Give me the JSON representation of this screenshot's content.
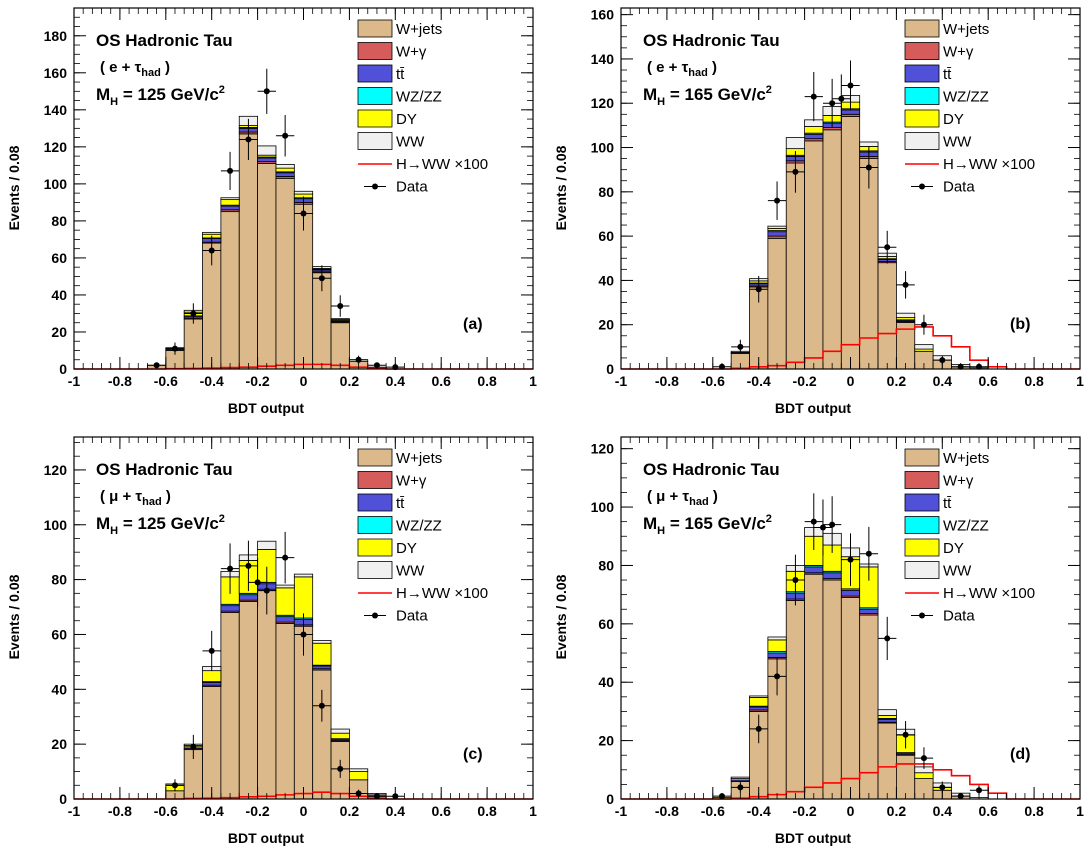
{
  "chart_data": [
    {
      "type": "bar",
      "panel": "(a)",
      "annotation": {
        "title": "OS Hadronic Tau",
        "channel": "( e + τhad )",
        "channel_prefix": "( e + τ",
        "channel_sub": "had",
        "channel_suffix": " )",
        "mass": "MH = 125 GeV/c2",
        "mass_lead": "M",
        "mass_lead_sub": "H",
        "mass_mid": " = 125 GeV/c",
        "mass_sup": "2"
      },
      "xlabel": "BDT output",
      "ylabel": "Events / 0.08",
      "xlim": [
        -1,
        1
      ],
      "ylim": [
        0,
        195
      ],
      "xticks": [
        "-1",
        "-0.8",
        "-0.6",
        "-0.4",
        "-0.2",
        "0",
        "0.2",
        "0.4",
        "0.6",
        "0.8",
        "1"
      ],
      "yticks": [
        0,
        20,
        40,
        60,
        80,
        100,
        120,
        140,
        160,
        180
      ],
      "bin_edges": [
        -0.68,
        -0.6,
        -0.52,
        -0.44,
        -0.36,
        -0.28,
        -0.2,
        -0.12,
        -0.04,
        0.04,
        0.12,
        0.2,
        0.28,
        0.36,
        0.44
      ],
      "stack": {
        "W+jets": [
          2,
          10,
          27,
          68,
          85,
          127,
          111,
          103,
          89,
          52,
          25,
          4,
          1,
          0
        ],
        "W+gamma": [
          0,
          0,
          0.5,
          0.5,
          1,
          1,
          1,
          1,
          1,
          0.5,
          0.5,
          0,
          0,
          0
        ],
        "ttbar": [
          0,
          0.5,
          1,
          2,
          2,
          2,
          2,
          2,
          2,
          1,
          0.5,
          0,
          0,
          0
        ],
        "WZ/ZZ": [
          0,
          0,
          0.2,
          0.3,
          0.5,
          0.5,
          0.5,
          0.5,
          0.5,
          0.3,
          0.2,
          0,
          0,
          0
        ],
        "DY": [
          0,
          0.5,
          2,
          2,
          3,
          1,
          1,
          2,
          2,
          0.5,
          0.5,
          0,
          0,
          0
        ],
        "WW": [
          0,
          0.5,
          1,
          1,
          1,
          5,
          5,
          2,
          1.5,
          1,
          0.5,
          1,
          0,
          0
        ]
      },
      "signal": {
        "name": "H→WW ×100",
        "values": [
          0,
          0.2,
          0.3,
          0.5,
          0.8,
          1,
          1.5,
          2,
          2.5,
          2.5,
          2,
          1,
          0.3,
          0
        ]
      },
      "data": {
        "x": [
          -0.64,
          -0.56,
          -0.48,
          -0.4,
          -0.32,
          -0.24,
          -0.16,
          -0.08,
          0,
          0.08,
          0.16,
          0.24,
          0.32,
          0.4
        ],
        "y": [
          2,
          11,
          30,
          64,
          107,
          124,
          150,
          126,
          84,
          49,
          34,
          5,
          2,
          1
        ],
        "err": [
          1.4,
          3.3,
          5.5,
          8,
          10.3,
          11.1,
          12.2,
          11.2,
          9.2,
          7,
          5.8,
          2.2,
          1.4,
          1
        ]
      },
      "legend": [
        "W+jets",
        "W+γ",
        "tt̄",
        "WZ/ZZ",
        "DY",
        "WW",
        "H→WW ×100",
        "Data"
      ],
      "legend_placement": "top-right"
    },
    {
      "type": "bar",
      "panel": "(b)",
      "annotation": {
        "title": "OS Hadronic Tau",
        "channel": "( e + τhad )",
        "channel_prefix": "( e + τ",
        "channel_sub": "had",
        "channel_suffix": " )",
        "mass": "MH = 165 GeV/c2",
        "mass_lead": "M",
        "mass_lead_sub": "H",
        "mass_mid": " = 165 GeV/c",
        "mass_sup": "2"
      },
      "xlabel": "BDT output",
      "ylabel": "Events / 0.08",
      "xlim": [
        -1,
        1
      ],
      "ylim": [
        0,
        163
      ],
      "xticks": [
        "-1",
        "-0.8",
        "-0.6",
        "-0.4",
        "-0.2",
        "0",
        "0.2",
        "0.4",
        "0.6",
        "0.8",
        "1"
      ],
      "yticks": [
        0,
        20,
        40,
        60,
        80,
        100,
        120,
        140,
        160
      ],
      "bin_edges": [
        -0.6,
        -0.52,
        -0.44,
        -0.36,
        -0.28,
        -0.2,
        -0.12,
        -0.04,
        0.04,
        0.12,
        0.2,
        0.28,
        0.36,
        0.44,
        0.52,
        0.6,
        0.68
      ],
      "stack": {
        "W+jets": [
          0,
          7,
          37,
          59,
          93,
          103,
          108,
          114,
          95,
          48,
          21,
          8,
          4,
          1,
          0,
          0
        ],
        "W+gamma": [
          0,
          0,
          0.5,
          1,
          1,
          1,
          1,
          1,
          1,
          0.5,
          0.5,
          0,
          0,
          0,
          0,
          0
        ],
        "ttbar": [
          0,
          0.5,
          1,
          2,
          2,
          2,
          2,
          2,
          2,
          1,
          0.5,
          0,
          0,
          0,
          0,
          0
        ],
        "WZ/ZZ": [
          0,
          0,
          0.3,
          0.5,
          0.5,
          0.5,
          0.5,
          0.5,
          0.5,
          0.3,
          0.2,
          0,
          0,
          0,
          0,
          0
        ],
        "DY": [
          0,
          0,
          1,
          1,
          3,
          3,
          3,
          3,
          2,
          1,
          1,
          1,
          0,
          0,
          0,
          0
        ],
        "WW": [
          0,
          0.5,
          1,
          1,
          5,
          3,
          4,
          3,
          2,
          1.5,
          2,
          2,
          2,
          1,
          0.5,
          0
        ]
      },
      "signal": {
        "name": "H→WW ×100",
        "values": [
          0,
          0.3,
          1,
          1.5,
          3,
          5,
          8,
          11,
          14,
          16,
          18,
          19,
          15,
          10,
          4,
          1
        ]
      },
      "data": {
        "x": [
          -0.56,
          -0.48,
          -0.4,
          -0.32,
          -0.24,
          -0.16,
          -0.08,
          -0.04,
          0,
          0.08,
          0.16,
          0.24,
          0.32,
          0.4,
          0.48,
          0.56
        ],
        "y": [
          1,
          10,
          36,
          76,
          89,
          123,
          120,
          122,
          128,
          91,
          55,
          38,
          20,
          4,
          1,
          1
        ],
        "err": [
          1,
          3.2,
          6,
          8.7,
          9.4,
          11.1,
          11,
          11,
          11.3,
          9.5,
          7.4,
          6.2,
          4.5,
          2,
          1,
          1
        ]
      },
      "legend": [
        "W+jets",
        "W+γ",
        "tt̄",
        "WZ/ZZ",
        "DY",
        "WW",
        "H→WW ×100",
        "Data"
      ],
      "legend_placement": "top-right"
    },
    {
      "type": "bar",
      "panel": "(c)",
      "annotation": {
        "title": "OS Hadronic Tau",
        "channel": "( μ + τhad )",
        "channel_prefix": "( μ + τ",
        "channel_sub": "had",
        "channel_suffix": " )",
        "mass": "MH = 125 GeV/c2",
        "mass_lead": "M",
        "mass_lead_sub": "H",
        "mass_mid": " = 125 GeV/c",
        "mass_sup": "2"
      },
      "xlabel": "BDT output",
      "ylabel": "Events / 0.08",
      "xlim": [
        -1,
        1
      ],
      "ylim": [
        0,
        132
      ],
      "xticks": [
        "-1",
        "-0.8",
        "-0.6",
        "-0.4",
        "-0.2",
        "0",
        "0.2",
        "0.4",
        "0.6",
        "0.8",
        "1"
      ],
      "yticks": [
        0,
        20,
        40,
        60,
        80,
        100,
        120
      ],
      "bin_edges": [
        -0.6,
        -0.52,
        -0.44,
        -0.36,
        -0.28,
        -0.2,
        -0.12,
        -0.04,
        0.04,
        0.12,
        0.2,
        0.28,
        0.36,
        0.44
      ],
      "stack": {
        "W+jets": [
          3,
          18,
          41,
          68,
          72,
          76,
          64,
          63,
          47,
          21,
          7,
          1,
          0
        ],
        "W+gamma": [
          0,
          0,
          0.5,
          0.5,
          0.5,
          0.5,
          0.5,
          0.5,
          0.5,
          0.3,
          0,
          0,
          0
        ],
        "ttbar": [
          0,
          0.5,
          1,
          2,
          2,
          2,
          2,
          2,
          1,
          0.5,
          0,
          0,
          0
        ],
        "WZ/ZZ": [
          0,
          0,
          0.3,
          0.5,
          0.5,
          0.5,
          0.5,
          0.5,
          0.3,
          0.2,
          0,
          0,
          0
        ],
        "DY": [
          2,
          1,
          4,
          10,
          12,
          12,
          10,
          15,
          8,
          2,
          3,
          0.5,
          0
        ],
        "WW": [
          0.5,
          0.5,
          1.5,
          2,
          2,
          3,
          1,
          1,
          1,
          1.5,
          1,
          0.5,
          0
        ]
      },
      "signal": {
        "name": "H→WW ×100",
        "values": [
          0,
          0.2,
          0.3,
          0.5,
          0.8,
          1,
          1.5,
          2,
          2.5,
          2,
          1,
          0.3,
          0
        ]
      },
      "data": {
        "x": [
          -0.56,
          -0.48,
          -0.4,
          -0.32,
          -0.24,
          -0.2,
          -0.16,
          -0.08,
          0,
          0.08,
          0.16,
          0.24,
          0.32,
          0.4
        ],
        "y": [
          5,
          19,
          54,
          84,
          85,
          79,
          76,
          88,
          60,
          34,
          11,
          2,
          1,
          1
        ],
        "err": [
          2.2,
          4.4,
          7.3,
          9.2,
          9.2,
          8.9,
          8.7,
          9.4,
          7.7,
          5.8,
          3.3,
          1.4,
          1,
          1
        ]
      },
      "legend": [
        "W+jets",
        "W+γ",
        "tt̄",
        "WZ/ZZ",
        "DY",
        "WW",
        "H→WW ×100",
        "Data"
      ],
      "legend_placement": "top-right"
    },
    {
      "type": "bar",
      "panel": "(d)",
      "annotation": {
        "title": "OS Hadronic Tau",
        "channel": "( μ + τhad )",
        "channel_prefix": "( μ + τ",
        "channel_sub": "had",
        "channel_suffix": " )",
        "mass": "MH = 165 GeV/c2",
        "mass_lead": "M",
        "mass_lead_sub": "H",
        "mass_mid": " = 165 GeV/c",
        "mass_sup": "2"
      },
      "xlabel": "BDT output",
      "ylabel": "Events / 0.08",
      "xlim": [
        -1,
        1
      ],
      "ylim": [
        0,
        124
      ],
      "xticks": [
        "-1",
        "-0.8",
        "-0.6",
        "-0.4",
        "-0.2",
        "0",
        "0.2",
        "0.4",
        "0.6",
        "0.8",
        "1"
      ],
      "yticks": [
        0,
        20,
        40,
        60,
        80,
        100,
        120
      ],
      "bin_edges": [
        -0.6,
        -0.52,
        -0.44,
        -0.36,
        -0.28,
        -0.2,
        -0.12,
        -0.04,
        0.04,
        0.12,
        0.2,
        0.28,
        0.36,
        0.44,
        0.52,
        0.6,
        0.68
      ],
      "stack": {
        "W+jets": [
          0,
          6,
          30,
          48,
          68,
          77,
          75,
          69,
          63,
          26,
          15,
          7,
          3,
          1,
          0,
          0
        ],
        "W+gamma": [
          0,
          0,
          0.5,
          0.5,
          0.5,
          0.5,
          0.5,
          0.5,
          0.5,
          0.3,
          0.2,
          0,
          0,
          0,
          0,
          0
        ],
        "ttbar": [
          0,
          0.5,
          1,
          1.5,
          2,
          2,
          2,
          2,
          1.5,
          1,
          0.5,
          0,
          0,
          0,
          0,
          0
        ],
        "WZ/ZZ": [
          0,
          0,
          0.3,
          0.5,
          0.5,
          0.5,
          0.5,
          0.5,
          0.5,
          0.3,
          0.2,
          0,
          0,
          0,
          0,
          0
        ],
        "DY": [
          0.5,
          0.5,
          3,
          4,
          7,
          10,
          9,
          11,
          14,
          1,
          6,
          2,
          1,
          0,
          0,
          0
        ],
        "WW": [
          0,
          0.5,
          0.5,
          1,
          2,
          3,
          4,
          3,
          1,
          2,
          2,
          2,
          1.5,
          1,
          0.5,
          0
        ]
      },
      "signal": {
        "name": "H→WW ×100",
        "values": [
          0,
          0.3,
          0.8,
          1.5,
          2.5,
          4,
          5.5,
          7,
          9,
          11,
          12,
          12,
          10,
          8,
          5,
          2
        ]
      },
      "data": {
        "x": [
          -0.56,
          -0.48,
          -0.4,
          -0.32,
          -0.24,
          -0.16,
          -0.12,
          -0.08,
          0,
          0.08,
          0.16,
          0.24,
          0.32,
          0.4,
          0.48,
          0.56
        ],
        "y": [
          1,
          4,
          24,
          42,
          75,
          95,
          93,
          94,
          82,
          84,
          55,
          22,
          14,
          4,
          1,
          3
        ],
        "err": [
          1,
          2,
          4.9,
          6.5,
          8.7,
          9.7,
          9.6,
          9.7,
          9,
          9.2,
          7.4,
          4.7,
          3.7,
          2,
          1,
          1.7
        ]
      },
      "legend": [
        "W+jets",
        "W+γ",
        "tt̄",
        "WZ/ZZ",
        "DY",
        "WW",
        "H→WW ×100",
        "Data"
      ],
      "legend_placement": "top-right"
    }
  ],
  "colors": {
    "W+jets": "#dcb98a",
    "W+gamma": "#d65c5c",
    "ttbar": "#5050d8",
    "WZ/ZZ": "#00ffff",
    "DY": "#ffff00",
    "WW": "#f0f0f0",
    "signal": "#ff0000",
    "data": "#000000"
  }
}
